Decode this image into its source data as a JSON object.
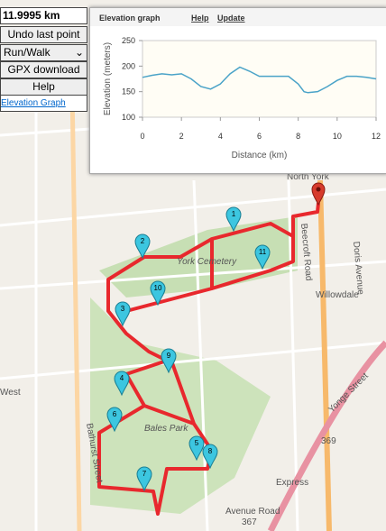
{
  "controls": {
    "distance": "11.9995 km",
    "undo": "Undo last point",
    "mode": "Run/Walk",
    "gpx": "GPX download",
    "help": "Help",
    "graph_link": "Elevation Graph"
  },
  "chart_data": {
    "type": "line",
    "title": "Elevation graph",
    "links": [
      "Help",
      "Update"
    ],
    "x_label": "Distance (km)",
    "y_label": "Elevation (meters)",
    "x": [
      0,
      0.5,
      1,
      1.5,
      2,
      2.5,
      3,
      3.5,
      4,
      4.5,
      5,
      5.5,
      6,
      6.5,
      7,
      7.5,
      8,
      8.3,
      8.5,
      9,
      9.5,
      10,
      10.5,
      11,
      11.5,
      12
    ],
    "series": [
      {
        "name": "Elevation",
        "color": "#4aa3c8",
        "values": [
          178,
          182,
          185,
          183,
          185,
          175,
          160,
          155,
          165,
          185,
          198,
          190,
          180,
          180,
          180,
          180,
          165,
          150,
          148,
          150,
          160,
          172,
          180,
          180,
          178,
          175
        ]
      }
    ],
    "xlim": [
      0,
      12
    ],
    "xticks": [
      0,
      2,
      4,
      6,
      8,
      10,
      12
    ],
    "ylim": [
      100,
      250
    ],
    "yticks": [
      100,
      150,
      200,
      250
    ],
    "grid": false
  },
  "map_labels": [
    "North York",
    "Willowdale",
    "York Cemetery",
    "Bales Park",
    "Bathurst Street",
    "Yonge Street",
    "369",
    "Avenue Road",
    "367",
    "Express",
    "Beecroft Road",
    "Doris Avenue",
    "West"
  ],
  "markers": [
    "1",
    "2",
    "3",
    "4",
    "5",
    "6",
    "7",
    "8",
    "9",
    "10",
    "11"
  ]
}
